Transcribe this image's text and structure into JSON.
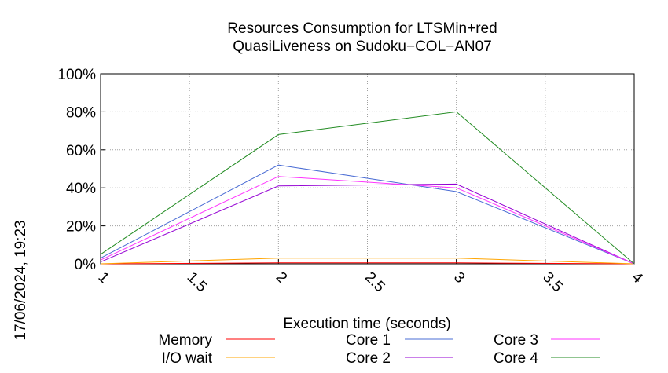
{
  "chart_data": {
    "type": "line",
    "title": [
      "Resources Consumption for LTSMin+red",
      "QuasiLiveness on Sudoku−COL−AN07"
    ],
    "xlabel": "Execution time (seconds)",
    "ylabel": "",
    "timestamp": "17/06/2024, 19:23",
    "xlim": [
      1,
      4
    ],
    "ylim": [
      0,
      100
    ],
    "x_ticks": [
      "1",
      "1.5",
      "2",
      "2.5",
      "3",
      "3.5",
      "4"
    ],
    "x_tick_values": [
      1,
      1.5,
      2,
      2.5,
      3,
      3.5,
      4
    ],
    "y_ticks": [
      "0%",
      "20%",
      "40%",
      "60%",
      "80%",
      "100%"
    ],
    "y_tick_values": [
      0,
      20,
      40,
      60,
      80,
      100
    ],
    "grid": true,
    "legend_position": "bottom",
    "x": [
      1,
      2,
      3,
      4
    ],
    "series": [
      {
        "name": "Memory",
        "color": "#ff0000",
        "values": [
          0,
          0.5,
          0.5,
          0
        ]
      },
      {
        "name": "I/O wait",
        "color": "#ffa500",
        "values": [
          0,
          3,
          3,
          0
        ]
      },
      {
        "name": "Core 1",
        "color": "#4a6cd4",
        "values": [
          3,
          52,
          38,
          0
        ]
      },
      {
        "name": "Core 2",
        "color": "#9400d3",
        "values": [
          1,
          41,
          42,
          0
        ]
      },
      {
        "name": "Core 3",
        "color": "#ff33ff",
        "values": [
          2,
          46,
          40,
          0
        ]
      },
      {
        "name": "Core 4",
        "color": "#228b22",
        "values": [
          5,
          68,
          80,
          0
        ]
      }
    ]
  }
}
